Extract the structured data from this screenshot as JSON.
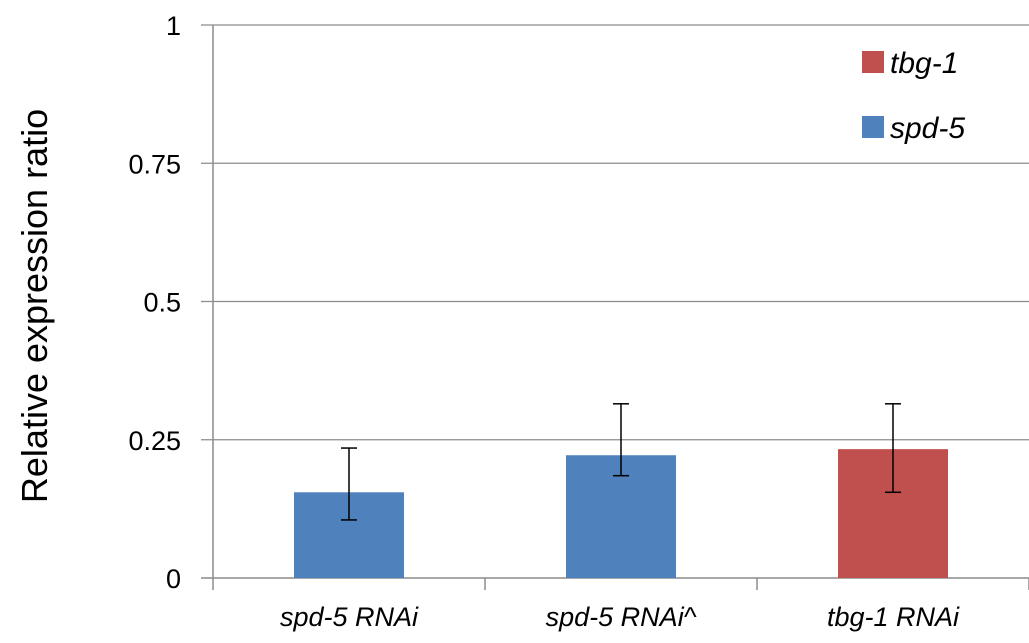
{
  "chart_data": {
    "type": "bar",
    "ylabel": "Relative  expression ratio",
    "xlabel": "",
    "ylim": [
      0,
      1
    ],
    "yticks": [
      {
        "value": 0,
        "label": "0"
      },
      {
        "value": 0.25,
        "label": "0.25"
      },
      {
        "value": 0.5,
        "label": "0.5"
      },
      {
        "value": 0.75,
        "label": "0.75"
      },
      {
        "value": 1,
        "label": "1"
      }
    ],
    "grid": true,
    "legend_position": "top-right",
    "categories": [
      "spd-5 RNAi",
      "spd-5 RNAi^",
      "tbg-1 RNAi"
    ],
    "series": [
      {
        "name": "tbg-1",
        "color": "#c0504d"
      },
      {
        "name": "spd-5",
        "color": "#4f81bd"
      }
    ],
    "bars": [
      {
        "category": "spd-5 RNAi",
        "series": "spd-5",
        "value": 0.155,
        "error_low": 0.105,
        "error_high": 0.235
      },
      {
        "category": "spd-5 RNAi^",
        "series": "spd-5",
        "value": 0.222,
        "error_low": 0.185,
        "error_high": 0.315
      },
      {
        "category": "tbg-1 RNAi",
        "series": "tbg-1",
        "value": 0.233,
        "error_low": 0.155,
        "error_high": 0.315
      }
    ]
  }
}
